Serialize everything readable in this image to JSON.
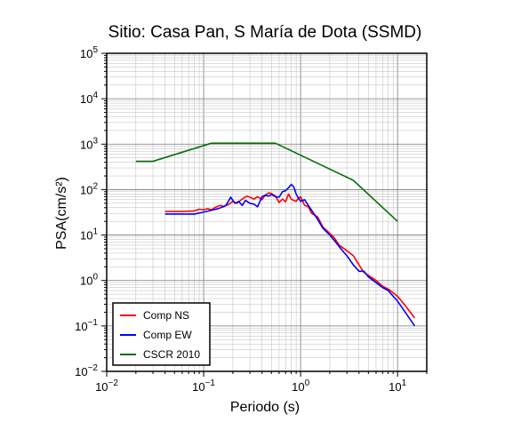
{
  "chart_data": {
    "type": "line",
    "title": "Sitio: Casa Pan, S María de Dota (SSMD)",
    "xlabel": "Periodo (s)",
    "ylabel": "PSA(cm/s²)",
    "x_scale": "log",
    "y_scale": "log",
    "xlim": [
      0.01,
      20
    ],
    "ylim": [
      0.01,
      100000
    ],
    "x_ticks": [
      {
        "value": 0.01,
        "base": "10",
        "exp": "−2"
      },
      {
        "value": 0.1,
        "base": "10",
        "exp": "−1"
      },
      {
        "value": 1,
        "base": "10",
        "exp": "0"
      },
      {
        "value": 10,
        "base": "10",
        "exp": "1"
      }
    ],
    "y_ticks": [
      {
        "value": 0.01,
        "base": "10",
        "exp": "−2"
      },
      {
        "value": 0.1,
        "base": "10",
        "exp": "−1"
      },
      {
        "value": 1,
        "base": "10",
        "exp": "0"
      },
      {
        "value": 10,
        "base": "10",
        "exp": "1"
      },
      {
        "value": 100,
        "base": "10",
        "exp": "2"
      },
      {
        "value": 1000,
        "base": "10",
        "exp": "3"
      },
      {
        "value": 10000,
        "base": "10",
        "exp": "4"
      },
      {
        "value": 100000,
        "base": "10",
        "exp": "5"
      }
    ],
    "grid": true,
    "legend_position": "bottom-left",
    "series": [
      {
        "name": "Comp NS",
        "color": "#ff0000",
        "points": [
          [
            0.04,
            33
          ],
          [
            0.06,
            33
          ],
          [
            0.08,
            34
          ],
          [
            0.09,
            37
          ],
          [
            0.1,
            36
          ],
          [
            0.11,
            38
          ],
          [
            0.12,
            36
          ],
          [
            0.13,
            40
          ],
          [
            0.14,
            43
          ],
          [
            0.15,
            45
          ],
          [
            0.16,
            42
          ],
          [
            0.18,
            47
          ],
          [
            0.2,
            55
          ],
          [
            0.22,
            50
          ],
          [
            0.25,
            62
          ],
          [
            0.28,
            72
          ],
          [
            0.3,
            68
          ],
          [
            0.33,
            62
          ],
          [
            0.36,
            70
          ],
          [
            0.4,
            60
          ],
          [
            0.43,
            75
          ],
          [
            0.47,
            85
          ],
          [
            0.5,
            82
          ],
          [
            0.55,
            72
          ],
          [
            0.6,
            52
          ],
          [
            0.65,
            62
          ],
          [
            0.7,
            54
          ],
          [
            0.75,
            80
          ],
          [
            0.8,
            62
          ],
          [
            0.85,
            58
          ],
          [
            0.9,
            55
          ],
          [
            0.95,
            65
          ],
          [
            1.0,
            70
          ],
          [
            1.1,
            45
          ],
          [
            1.2,
            42
          ],
          [
            1.3,
            30
          ],
          [
            1.5,
            25
          ],
          [
            1.7,
            15
          ],
          [
            1.9,
            12
          ],
          [
            2.2,
            9
          ],
          [
            2.5,
            6
          ],
          [
            3.0,
            4.5
          ],
          [
            3.5,
            3.5
          ],
          [
            4.0,
            2.2
          ],
          [
            4.5,
            1.5
          ],
          [
            5.0,
            1.3
          ],
          [
            6.0,
            1.0
          ],
          [
            7.0,
            0.75
          ],
          [
            8.0,
            0.65
          ],
          [
            10.0,
            0.45
          ],
          [
            12.0,
            0.28
          ],
          [
            15.0,
            0.15
          ]
        ]
      },
      {
        "name": "Comp EW",
        "color": "#0000ff",
        "points": [
          [
            0.04,
            29
          ],
          [
            0.06,
            29
          ],
          [
            0.08,
            29
          ],
          [
            0.1,
            32
          ],
          [
            0.12,
            35
          ],
          [
            0.14,
            38
          ],
          [
            0.15,
            40
          ],
          [
            0.17,
            45
          ],
          [
            0.19,
            68
          ],
          [
            0.21,
            50
          ],
          [
            0.23,
            55
          ],
          [
            0.25,
            45
          ],
          [
            0.27,
            58
          ],
          [
            0.3,
            50
          ],
          [
            0.33,
            48
          ],
          [
            0.36,
            42
          ],
          [
            0.4,
            70
          ],
          [
            0.43,
            75
          ],
          [
            0.47,
            72
          ],
          [
            0.5,
            78
          ],
          [
            0.55,
            70
          ],
          [
            0.6,
            68
          ],
          [
            0.65,
            90
          ],
          [
            0.7,
            95
          ],
          [
            0.75,
            110
          ],
          [
            0.8,
            130
          ],
          [
            0.85,
            115
          ],
          [
            0.9,
            80
          ],
          [
            0.95,
            65
          ],
          [
            1.0,
            55
          ],
          [
            1.1,
            60
          ],
          [
            1.2,
            45
          ],
          [
            1.3,
            35
          ],
          [
            1.5,
            22
          ],
          [
            1.7,
            14
          ],
          [
            2.0,
            10
          ],
          [
            2.3,
            7
          ],
          [
            2.6,
            5
          ],
          [
            3.0,
            3.5
          ],
          [
            3.5,
            2.2
          ],
          [
            4.0,
            1.6
          ],
          [
            4.5,
            1.6
          ],
          [
            5.0,
            1.2
          ],
          [
            6.0,
            0.9
          ],
          [
            7.0,
            0.7
          ],
          [
            8.0,
            0.6
          ],
          [
            10.0,
            0.35
          ],
          [
            12.0,
            0.2
          ],
          [
            15.0,
            0.1
          ]
        ]
      },
      {
        "name": "CSCR 2010",
        "color": "#0a6e0a",
        "points": [
          [
            0.02,
            420
          ],
          [
            0.03,
            420
          ],
          [
            0.12,
            1050
          ],
          [
            0.55,
            1050
          ],
          [
            3.5,
            160
          ],
          [
            10.0,
            20
          ]
        ]
      }
    ]
  }
}
